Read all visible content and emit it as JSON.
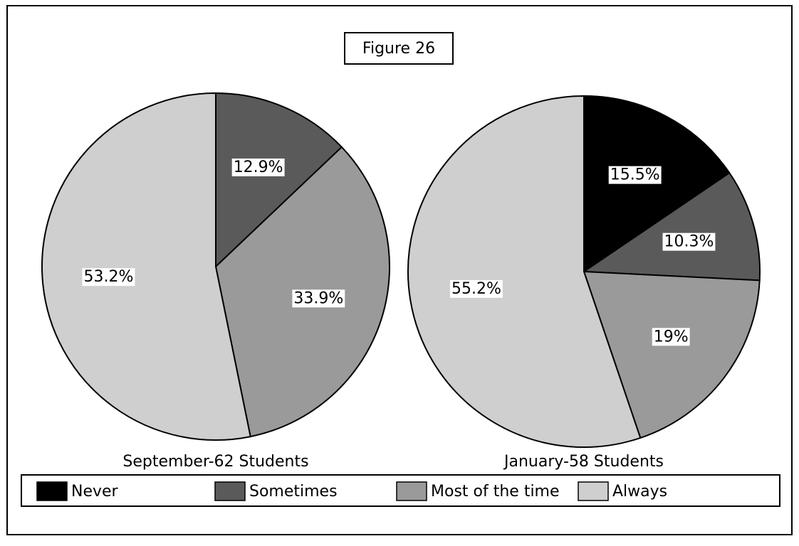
{
  "title": "Figure 26",
  "chart_data": [
    {
      "type": "pie",
      "title": "September-62 Students",
      "categories": [
        "Sometimes",
        "Most of the time",
        "Always"
      ],
      "values": [
        12.9,
        33.9,
        53.2
      ],
      "value_labels": [
        "12.9%",
        "33.9%",
        "53.2%"
      ],
      "colors": [
        "#5a5a5a",
        "#9a9a9a",
        "#cfcfcf"
      ]
    },
    {
      "type": "pie",
      "title": "January-58 Students",
      "categories": [
        "Never",
        "Sometimes",
        "Most of the time",
        "Always"
      ],
      "values": [
        15.5,
        10.3,
        19,
        55.2
      ],
      "value_labels": [
        "15.5%",
        "10.3%",
        "19%",
        "55.2%"
      ],
      "colors": [
        "#000000",
        "#5a5a5a",
        "#9a9a9a",
        "#cfcfcf"
      ]
    }
  ]
}
